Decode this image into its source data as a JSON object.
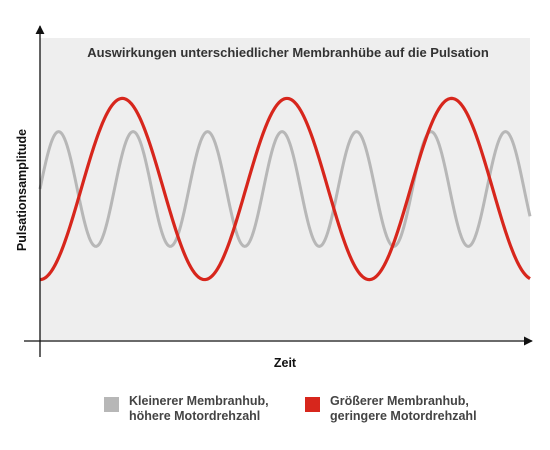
{
  "chart_data": {
    "type": "line",
    "title": "Auswirkungen unterschiedlicher Membranhübe auf die Pulsation",
    "xlabel": "Zeit",
    "ylabel": "Pulsationsamplitude",
    "xlim": [
      0,
      1
    ],
    "ylim": [
      0,
      1
    ],
    "grid": false,
    "legend_position": "bottom",
    "series": [
      {
        "id": "small-stroke",
        "name": "Kleinerer Membranhub, höhere Motordrehzahl",
        "legend_lines": [
          "Kleinerer Membranhub,",
          "höhere Motordrehzahl"
        ],
        "color": "#b7b7b7",
        "waveform": "sine",
        "x": [
          0.0,
          0.038,
          0.077,
          0.115,
          0.154,
          0.192,
          0.231,
          0.269,
          0.308,
          0.346,
          0.385,
          0.423,
          0.462,
          0.5,
          0.538,
          0.577,
          0.615,
          0.654,
          0.692,
          0.731,
          0.769,
          0.808,
          0.846,
          0.885,
          0.923,
          0.962,
          1.0
        ],
        "y": [
          0.5,
          0.69,
          0.5,
          0.31,
          0.5,
          0.69,
          0.5,
          0.31,
          0.5,
          0.69,
          0.5,
          0.31,
          0.5,
          0.69,
          0.5,
          0.31,
          0.5,
          0.69,
          0.5,
          0.31,
          0.5,
          0.69,
          0.5,
          0.31,
          0.5,
          0.69,
          0.5
        ]
      },
      {
        "id": "large-stroke",
        "name": "Größerer Membranhub, geringere Motordrehzahl",
        "legend_lines": [
          "Größerer Membranhub,",
          "geringere Motordrehzahl"
        ],
        "color": "#d7261c",
        "waveform": "sine",
        "x": [
          0.0,
          0.084,
          0.168,
          0.252,
          0.336,
          0.42,
          0.504,
          0.588,
          0.672,
          0.756,
          0.84,
          0.924,
          1.0
        ],
        "y": [
          0.2,
          0.5,
          0.8,
          0.5,
          0.2,
          0.5,
          0.8,
          0.5,
          0.2,
          0.5,
          0.8,
          0.5,
          0.2
        ]
      }
    ]
  }
}
